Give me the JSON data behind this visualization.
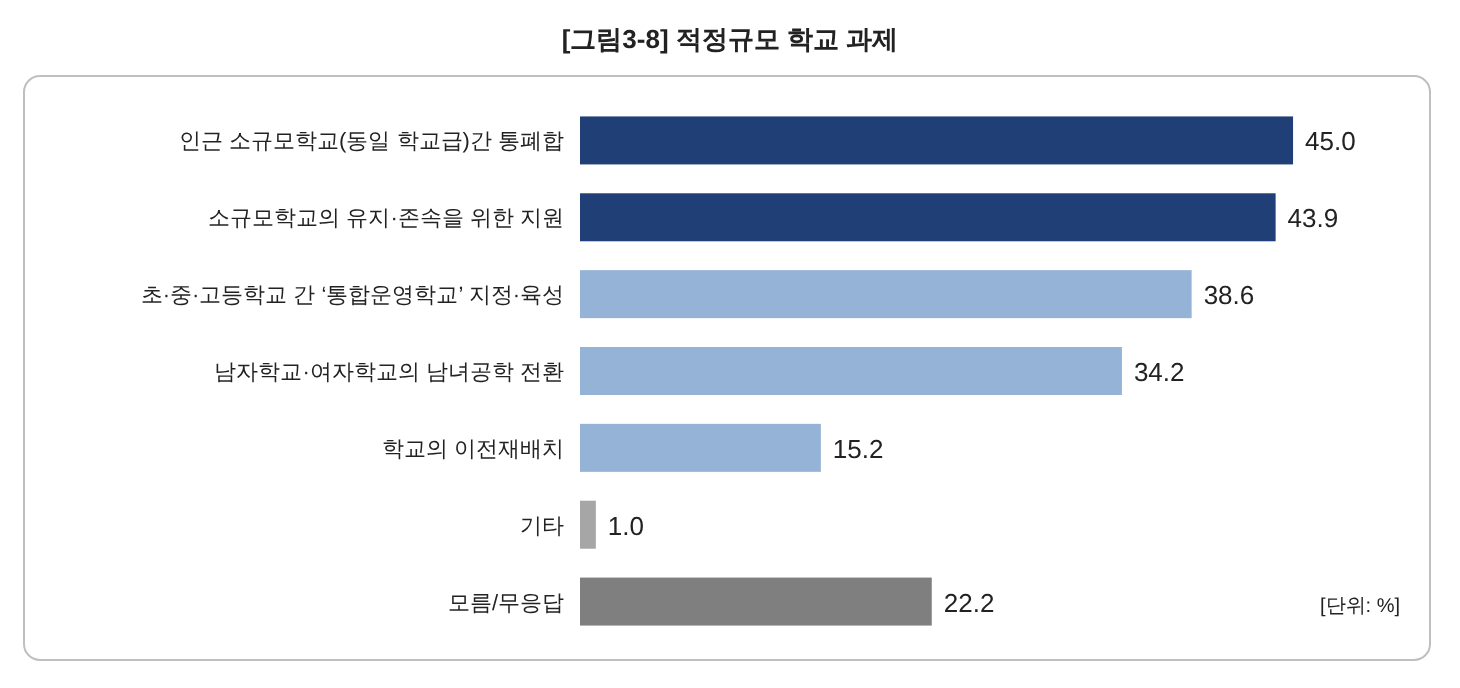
{
  "chart_data": {
    "type": "bar",
    "orientation": "horizontal",
    "title": "[그림3-8]  적정규모 학교 과제",
    "categories": [
      "인근 소규모학교(동일 학교급)간 통폐합",
      "소규모학교의 유지·존속을 위한 지원",
      "초·중·고등학교 간 ‘통합운영학교’ 지정·육성",
      "남자학교·여자학교의 남녀공학 전환",
      "학교의 이전재배치",
      "기타",
      "모름/무응답"
    ],
    "values": [
      45.0,
      43.9,
      38.6,
      34.2,
      15.2,
      1.0,
      22.2
    ],
    "colors": [
      "#1f3f76",
      "#1f3f76",
      "#95b3d7",
      "#95b3d7",
      "#95b3d7",
      "#a6a6a6",
      "#7f7f7f"
    ],
    "value_labels": [
      "45.0",
      "43.9",
      "38.6",
      "34.2",
      "15.2",
      "1.0",
      "22.2"
    ],
    "annotations": [
      "[단위: %]"
    ]
  }
}
